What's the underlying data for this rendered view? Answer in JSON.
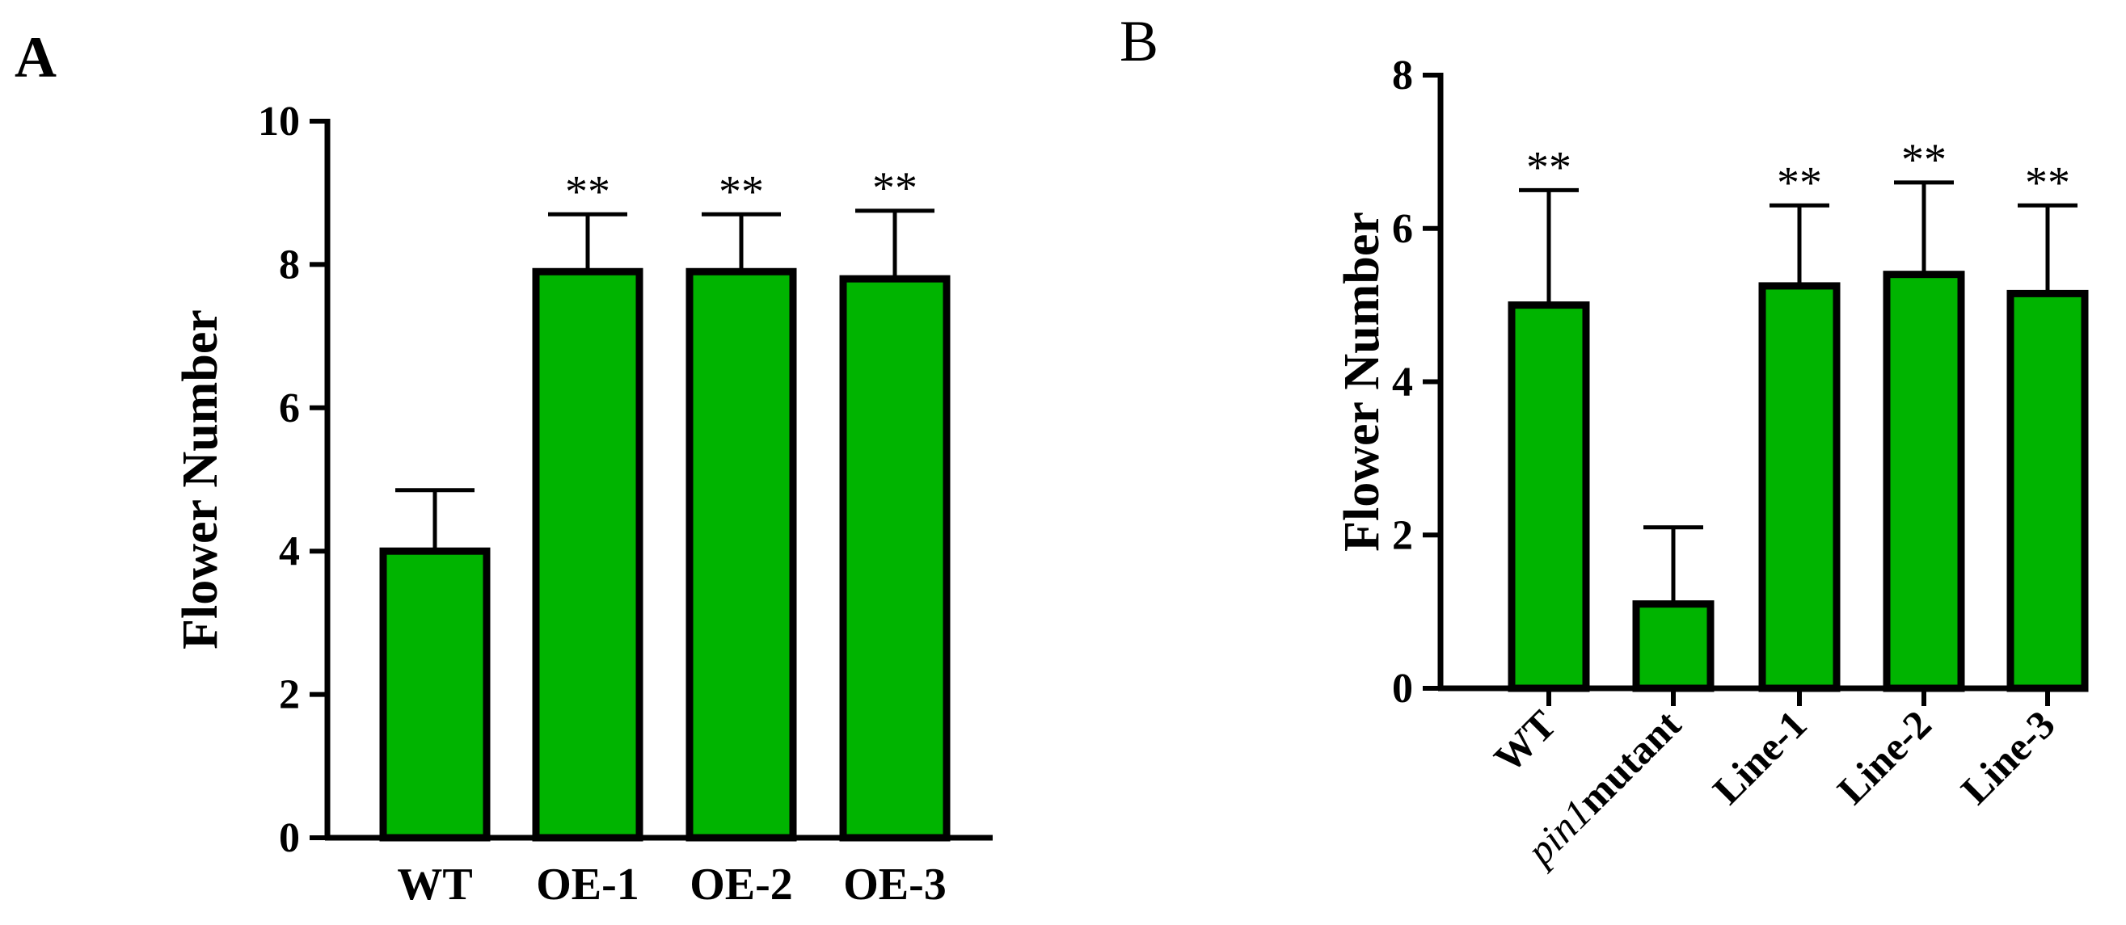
{
  "colors": {
    "bar_fill": "#00B400",
    "stroke": "#000000"
  },
  "chart_data": [
    {
      "panel_label": "A",
      "type": "bar",
      "ylabel": "Flower Number",
      "xlabel": "",
      "ylim": [
        0,
        10
      ],
      "yticks": [
        "0",
        "2",
        "4",
        "6",
        "8",
        "10"
      ],
      "categories": [
        "WT",
        "OE-1",
        "OE-2",
        "OE-3"
      ],
      "values": [
        4.0,
        7.9,
        7.9,
        7.8
      ],
      "error": [
        0.85,
        0.8,
        0.8,
        0.95
      ],
      "significance": [
        "",
        "**",
        "**",
        "**"
      ],
      "grid": false,
      "legend": "none"
    },
    {
      "panel_label": "B",
      "type": "bar",
      "ylabel": "Flower Number",
      "xlabel": "",
      "ylim": [
        0,
        8
      ],
      "yticks": [
        "0",
        "2",
        "4",
        "6",
        "8"
      ],
      "categories": [
        {
          "italic": "",
          "text": "WT"
        },
        {
          "italic": "pin1",
          "text": "mutant"
        },
        {
          "italic": "",
          "text": "Line-1"
        },
        {
          "italic": "",
          "text": "Line-2"
        },
        {
          "italic": "",
          "text": "Line-3"
        }
      ],
      "values": [
        5.0,
        1.1,
        5.25,
        5.4,
        5.15
      ],
      "error": [
        1.5,
        1.0,
        1.05,
        1.2,
        1.15
      ],
      "significance": [
        "**",
        "",
        "**",
        "**",
        "**"
      ],
      "grid": false,
      "legend": "none"
    }
  ]
}
